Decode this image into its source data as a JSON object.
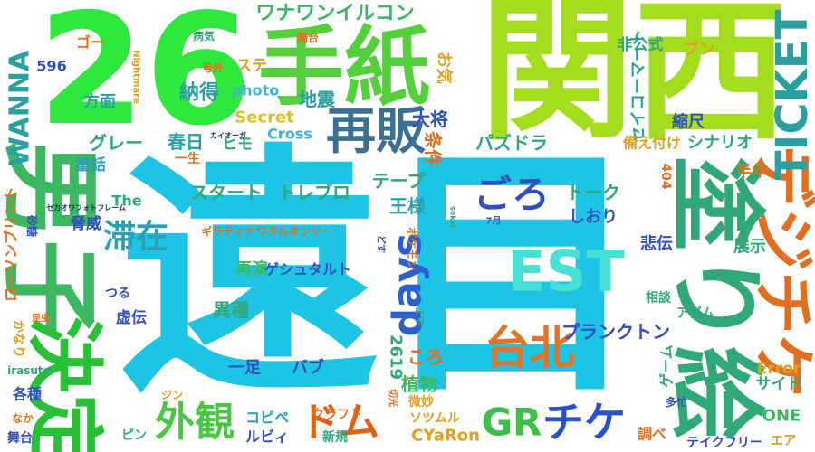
{
  "words": [
    {
      "text": "遠目",
      "color": "#1ec4e4"
    },
    {
      "text": "関西",
      "color": "#a4dc1e"
    },
    {
      "text": "26",
      "color": "#2ee83e"
    },
    {
      "text": "手紙",
      "color": "#54d03c"
    },
    {
      "text": "再販",
      "color": "#3d7090"
    },
    {
      "text": "男子",
      "color": "#3cb860"
    },
    {
      "text": "決定",
      "color": "#28c038"
    },
    {
      "text": "塗り絵",
      "color": "#30a878"
    },
    {
      "text": "デジチケ",
      "color": "#e07020"
    },
    {
      "text": "TICKET",
      "color": "#2a9fa0"
    },
    {
      "text": "EST",
      "color": "#48e0d4"
    },
    {
      "text": "台北",
      "color": "#e07428"
    },
    {
      "text": "ごろ",
      "color": "#3050c0"
    },
    {
      "text": "GR",
      "color": "#3cc048"
    },
    {
      "text": "チケ",
      "color": "#2a50d0"
    },
    {
      "text": "外観",
      "color": "#48c840"
    },
    {
      "text": "ドム",
      "color": "#e06010"
    },
    {
      "text": "days",
      "color": "#2a60d0"
    },
    {
      "text": "滞在",
      "color": "#2aa0b0"
    },
    {
      "text": "納得",
      "color": "#2a9fa0"
    },
    {
      "text": "WANNA",
      "color": "#2aa0a0"
    },
    {
      "text": "方面",
      "color": "#2aa0a0"
    },
    {
      "text": "596",
      "color": "#3050c0"
    },
    {
      "text": "ゴー",
      "color": "#e07020"
    },
    {
      "text": "ステ",
      "color": "#e0a020"
    },
    {
      "text": "ワナワンイルコン",
      "color": "#3cb860"
    },
    {
      "text": "photo",
      "color": "#40b0e0"
    },
    {
      "text": "地震",
      "color": "#2aa0a0"
    },
    {
      "text": "Secret",
      "color": "#e0c020"
    },
    {
      "text": "Cross",
      "color": "#40b0e0"
    },
    {
      "text": "ヒモ",
      "color": "#30a878"
    },
    {
      "text": "春日",
      "color": "#2aa0a0"
    },
    {
      "text": "一生",
      "color": "#e07020"
    },
    {
      "text": "グレー",
      "color": "#30a878"
    },
    {
      "text": "童話",
      "color": "#2aa0b0"
    },
    {
      "text": "カイオーガ",
      "color": "#203060"
    },
    {
      "text": "スタート",
      "color": "#30a878"
    },
    {
      "text": "トレブロ",
      "color": "#30a878"
    },
    {
      "text": "テープ",
      "color": "#30a878"
    },
    {
      "text": "大将",
      "color": "#3050c0"
    },
    {
      "text": "お気",
      "color": "#e0a020"
    },
    {
      "text": "条件",
      "color": "#e07020"
    },
    {
      "text": "王様",
      "color": "#2aa0b0"
    },
    {
      "text": "パズドラ",
      "color": "#30a878"
    },
    {
      "text": "トーク",
      "color": "#30a878"
    },
    {
      "text": "しおり",
      "color": "#3050c0"
    },
    {
      "text": "7月",
      "color": "#3050c0"
    },
    {
      "text": "非公式",
      "color": "#30a878"
    },
    {
      "text": "ブン",
      "color": "#e0a020"
    },
    {
      "text": "セイコーマート",
      "color": "#2aa0a0"
    },
    {
      "text": "縮尺",
      "color": "#3050c0"
    },
    {
      "text": "シナリオ",
      "color": "#30a878"
    },
    {
      "text": "備え付け",
      "color": "#e0a020"
    },
    {
      "text": "404",
      "color": "#e07020"
    },
    {
      "text": "半年",
      "color": "#e07020"
    },
    {
      "text": "展示",
      "color": "#30a878"
    },
    {
      "text": "悲伝",
      "color": "#3050c0"
    },
    {
      "text": "プランクトン",
      "color": "#3050c0"
    },
    {
      "text": "サイド",
      "color": "#30a878"
    },
    {
      "text": "Error",
      "color": "#e0a020"
    },
    {
      "text": "ONE",
      "color": "#3cb860"
    },
    {
      "text": "調べ",
      "color": "#e07020"
    },
    {
      "text": "テイクフリー",
      "color": "#3050c0"
    },
    {
      "text": "エア",
      "color": "#e0a020"
    },
    {
      "text": "アダム",
      "color": "#30a878"
    },
    {
      "text": "相談",
      "color": "#30a878"
    },
    {
      "text": "多忙",
      "color": "#3050c0"
    },
    {
      "text": "ゲーム",
      "color": "#30a878"
    },
    {
      "text": "2619",
      "color": "#30a878"
    },
    {
      "text": "ころ",
      "color": "#e07020"
    },
    {
      "text": "植物",
      "color": "#3cb860"
    },
    {
      "text": "微妙",
      "color": "#e0a020"
    },
    {
      "text": "クラフト",
      "color": "#e07020"
    },
    {
      "text": "新規",
      "color": "#30a878"
    },
    {
      "text": "CYaRon",
      "color": "#e0a020"
    },
    {
      "text": "ソツムル",
      "color": "#e0a020"
    },
    {
      "text": "ルビィ",
      "color": "#3050c0"
    },
    {
      "text": "コピペ",
      "color": "#2aa0b0"
    },
    {
      "text": "ピン",
      "color": "#30a878"
    },
    {
      "text": "一足",
      "color": "#3050c0"
    },
    {
      "text": "バブ",
      "color": "#3050c0"
    },
    {
      "text": "異種",
      "color": "#30a878"
    },
    {
      "text": "再演",
      "color": "#3cb860"
    },
    {
      "text": "ゲシュタルト",
      "color": "#3050c0"
    },
    {
      "text": "ギラティナ",
      "color": "#e07020"
    },
    {
      "text": "ワタルオンリー",
      "color": "#e07020"
    },
    {
      "text": "ポケモン",
      "color": "#e07020"
    },
    {
      "text": "どす",
      "color": "#3050c0"
    },
    {
      "text": "上下",
      "color": "#30a878"
    },
    {
      "text": "虚伝",
      "color": "#3050c0"
    },
    {
      "text": "脅威",
      "color": "#3050c0"
    },
    {
      "text": "つる",
      "color": "#3050c0"
    },
    {
      "text": "The",
      "color": "#30a878"
    },
    {
      "text": "ローソンプリント",
      "color": "#e07020"
    },
    {
      "text": "砂糖",
      "color": "#3050c0"
    },
    {
      "text": "かなり",
      "color": "#e0a020"
    },
    {
      "text": "昆虫",
      "color": "#e07020"
    },
    {
      "text": "irasuto",
      "color": "#30a878"
    },
    {
      "text": "各種",
      "color": "#3050c0"
    },
    {
      "text": "なか",
      "color": "#e07020"
    },
    {
      "text": "舞台",
      "color": "#3050c0"
    },
    {
      "text": "ジン",
      "color": "#e0a020"
    },
    {
      "text": "病気",
      "color": "#30a878"
    },
    {
      "text": "号外",
      "color": "#e07020"
    },
    {
      "text": "Nightmare",
      "color": "#e0a020"
    },
    {
      "text": "燭台",
      "color": "#e07020"
    },
    {
      "text": "セカオワフォトフレーム",
      "color": "#203060"
    },
    {
      "text": "切光",
      "color": "#e07020"
    },
    {
      "text": "sekai",
      "color": "#30a878"
    }
  ]
}
